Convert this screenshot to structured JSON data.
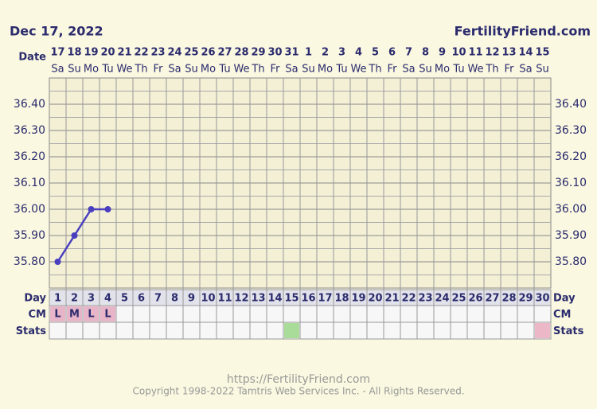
{
  "header": {
    "date": "Dec 17, 2022",
    "brand": "FertilityFriend.com"
  },
  "chart_data": {
    "type": "line",
    "date_label": "Date",
    "dates": [
      "17",
      "18",
      "19",
      "20",
      "21",
      "22",
      "23",
      "24",
      "25",
      "26",
      "27",
      "28",
      "29",
      "30",
      "31",
      "1",
      "2",
      "3",
      "4",
      "5",
      "6",
      "7",
      "8",
      "9",
      "10",
      "11",
      "12",
      "13",
      "14",
      "15"
    ],
    "weekdays": [
      "Sa",
      "Su",
      "Mo",
      "Tu",
      "We",
      "Th",
      "Fr",
      "Sa",
      "Su",
      "Mo",
      "Tu",
      "We",
      "Th",
      "Fr",
      "Sa",
      "Su",
      "Mo",
      "Tu",
      "We",
      "Th",
      "Fr",
      "Sa",
      "Su",
      "Mo",
      "Tu",
      "We",
      "Th",
      "Fr",
      "Sa",
      "Su"
    ],
    "days": [
      1,
      2,
      3,
      4,
      5,
      6,
      7,
      8,
      9,
      10,
      11,
      12,
      13,
      14,
      15,
      16,
      17,
      18,
      19,
      20,
      21,
      22,
      23,
      24,
      25,
      26,
      27,
      28,
      29,
      30
    ],
    "values": [
      35.8,
      35.9,
      36.0,
      36.0,
      null,
      null,
      null,
      null,
      null,
      null,
      null,
      null,
      null,
      null,
      null,
      null,
      null,
      null,
      null,
      null,
      null,
      null,
      null,
      null,
      null,
      null,
      null,
      null,
      null,
      null
    ],
    "color": "#4a3fbf",
    "ylim": [
      35.7,
      36.5
    ],
    "yticks": [
      {
        "value": 35.8,
        "label": "35.80"
      },
      {
        "value": 35.9,
        "label": "35.90"
      },
      {
        "value": 36.0,
        "label": "36.00"
      },
      {
        "value": 36.1,
        "label": "36.10"
      },
      {
        "value": 36.2,
        "label": "36.20"
      },
      {
        "value": 36.3,
        "label": "36.30"
      },
      {
        "value": 36.4,
        "label": "36.40"
      }
    ],
    "row_labels": {
      "day": "Day",
      "cm": "CM",
      "stats": "Stats"
    },
    "cm": [
      "L",
      "M",
      "L",
      "L"
    ]
  },
  "footer": {
    "url": "https://FertilityFriend.com",
    "copyright": "Copyright 1998-2022 Tamtris Web Services Inc. - All Rights Reserved."
  }
}
